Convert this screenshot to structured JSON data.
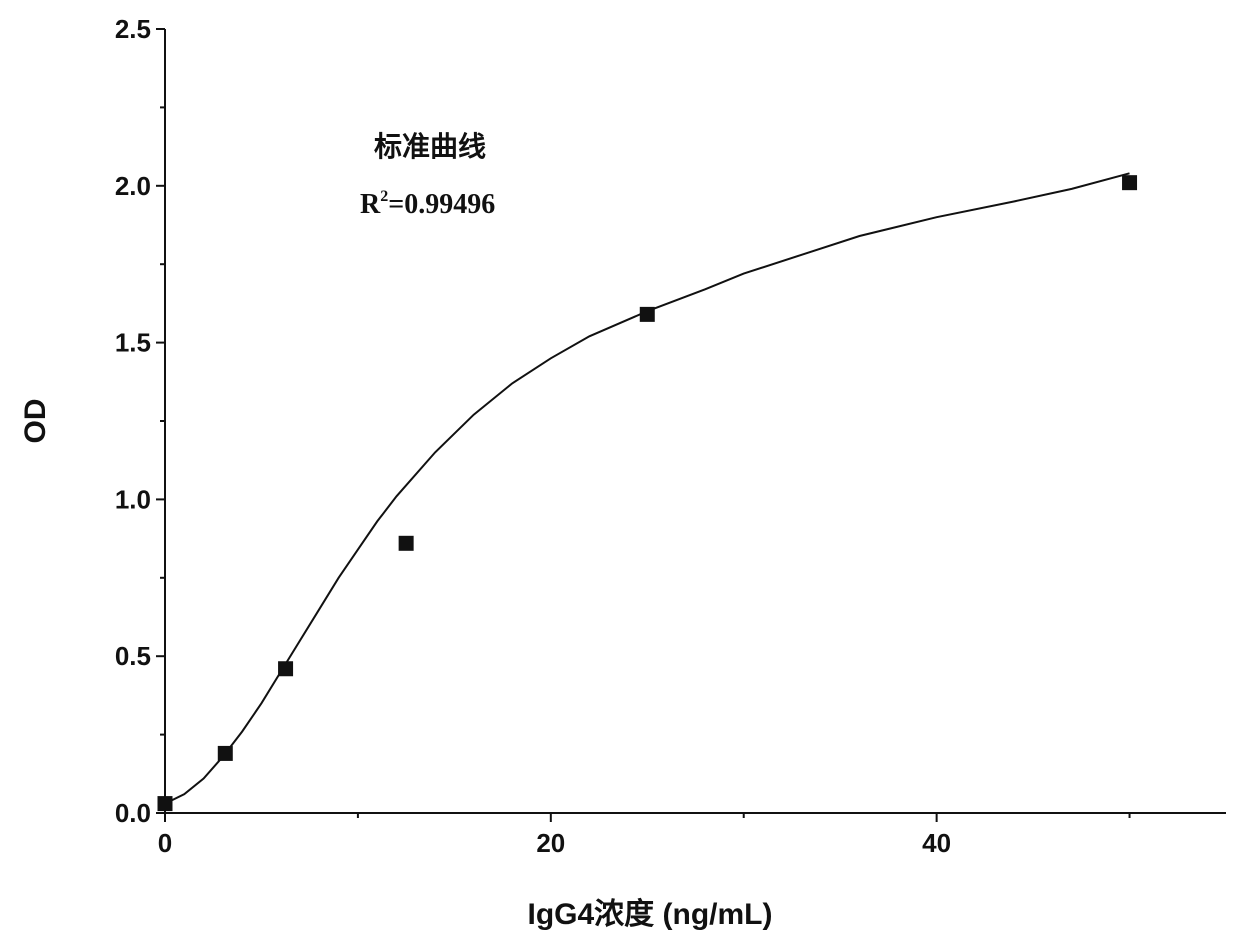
{
  "chart_data": {
    "type": "scatter",
    "title": "",
    "xlabel": "IgG4浓度 (ng/mL)",
    "ylabel": "OD",
    "xlim": [
      0,
      55
    ],
    "ylim": [
      0,
      2.5
    ],
    "x_ticks": [
      "0",
      "20",
      "40"
    ],
    "x_tick_values": [
      0,
      20,
      40
    ],
    "y_ticks": [
      "0.0",
      "0.5",
      "1.0",
      "1.5",
      "2.0",
      "2.5"
    ],
    "y_tick_values": [
      0,
      0.5,
      1.0,
      1.5,
      2.0,
      2.5
    ],
    "grid": false,
    "series": [
      {
        "marker": "square",
        "color": "#111111",
        "points": [
          {
            "x": 0,
            "y": 0.03
          },
          {
            "x": 3.125,
            "y": 0.19
          },
          {
            "x": 6.25,
            "y": 0.46
          },
          {
            "x": 12.5,
            "y": 0.86
          },
          {
            "x": 25,
            "y": 1.59
          },
          {
            "x": 50,
            "y": 2.01
          }
        ]
      }
    ],
    "fit_curve": {
      "color": "#111111",
      "points": [
        {
          "x": 0,
          "y": 0.03
        },
        {
          "x": 1,
          "y": 0.06
        },
        {
          "x": 2,
          "y": 0.11
        },
        {
          "x": 3,
          "y": 0.18
        },
        {
          "x": 4,
          "y": 0.26
        },
        {
          "x": 5,
          "y": 0.35
        },
        {
          "x": 6,
          "y": 0.45
        },
        {
          "x": 7,
          "y": 0.55
        },
        {
          "x": 8,
          "y": 0.65
        },
        {
          "x": 9,
          "y": 0.75
        },
        {
          "x": 10,
          "y": 0.84
        },
        {
          "x": 11,
          "y": 0.93
        },
        {
          "x": 12,
          "y": 1.01
        },
        {
          "x": 14,
          "y": 1.15
        },
        {
          "x": 16,
          "y": 1.27
        },
        {
          "x": 18,
          "y": 1.37
        },
        {
          "x": 20,
          "y": 1.45
        },
        {
          "x": 22,
          "y": 1.52
        },
        {
          "x": 25,
          "y": 1.6
        },
        {
          "x": 28,
          "y": 1.67
        },
        {
          "x": 30,
          "y": 1.72
        },
        {
          "x": 33,
          "y": 1.78
        },
        {
          "x": 36,
          "y": 1.84
        },
        {
          "x": 40,
          "y": 1.9
        },
        {
          "x": 44,
          "y": 1.95
        },
        {
          "x": 47,
          "y": 1.99
        },
        {
          "x": 50,
          "y": 2.04
        }
      ]
    },
    "annotations": {
      "label": "标准曲线",
      "r2_prefix": "R",
      "r2_sup": "2",
      "r2_value": "=0.99496"
    }
  }
}
